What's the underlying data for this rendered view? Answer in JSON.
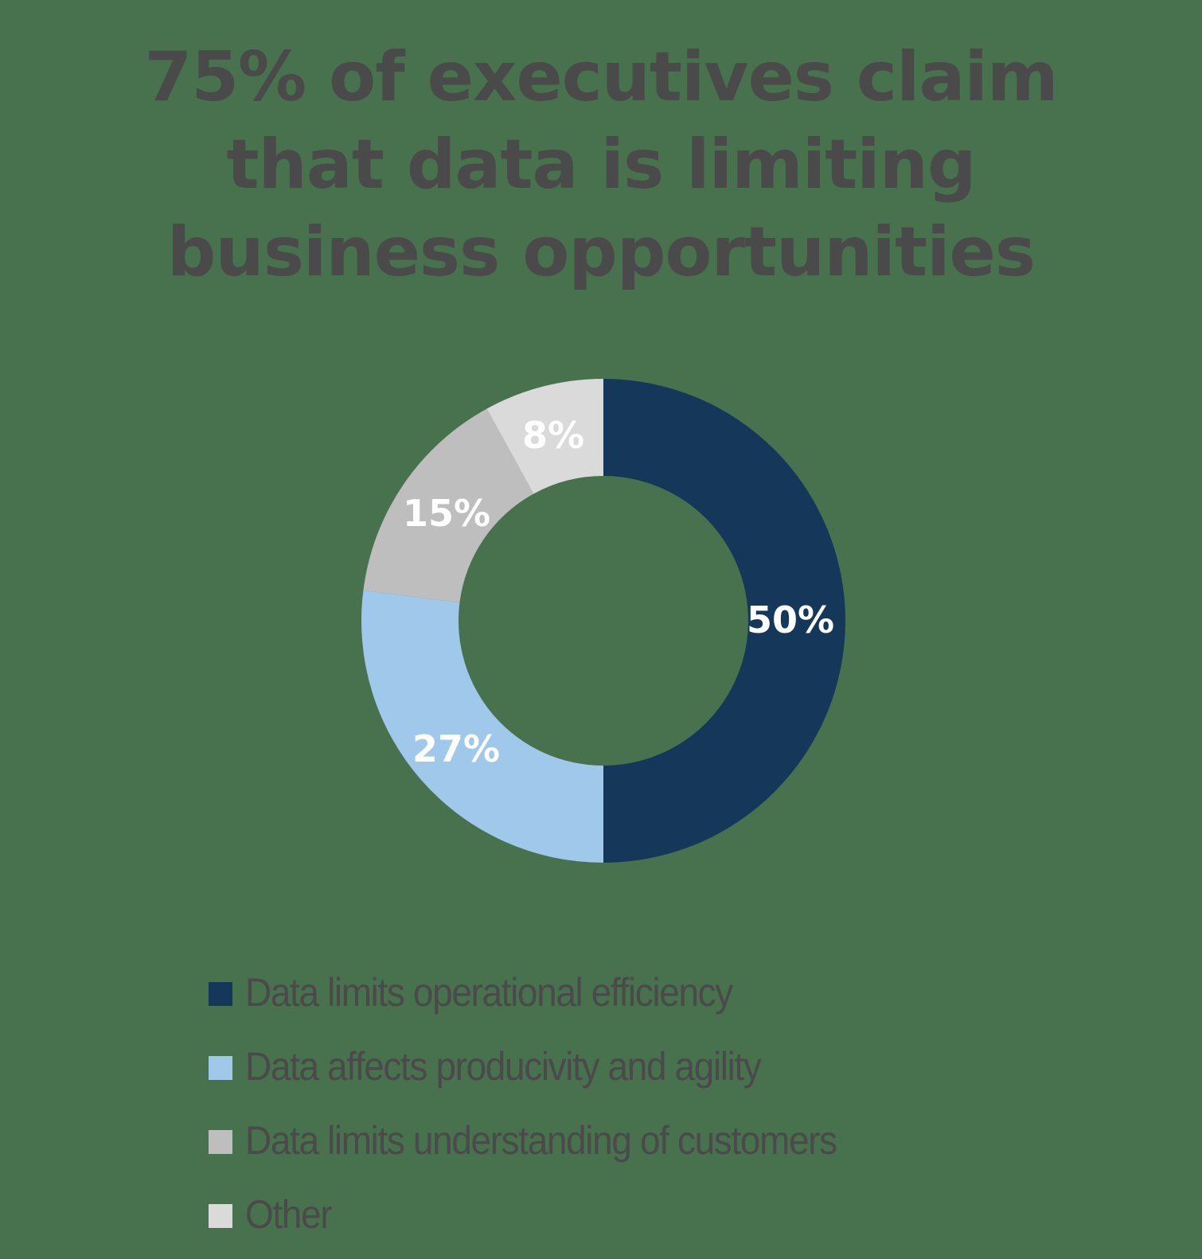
{
  "title": {
    "lines": [
      "75% of executives claim",
      "that data is limiting",
      "business opportunities"
    ]
  },
  "colors": {
    "background": "#48714e",
    "title_text": "#4a4a4b",
    "slice_label_text": "#ffffff"
  },
  "slices": [
    {
      "label": "Data limits operational efficiency",
      "value": 50,
      "value_label": "50%",
      "color": "#14375a"
    },
    {
      "label": "Data affects producivity and agility",
      "value": 27,
      "value_label": "27%",
      "color": "#9fc8ea"
    },
    {
      "label": "Data limits understanding of customers",
      "value": 15,
      "value_label": "15%",
      "color": "#bebebe"
    },
    {
      "label": "Other",
      "value": 8,
      "value_label": "8%",
      "color": "#dadada"
    }
  ],
  "chart_data": {
    "type": "pie",
    "variant": "donut",
    "title": "75% of executives claim that data is limiting business opportunities",
    "categories": [
      "Data limits operational efficiency",
      "Data affects producivity and agility",
      "Data limits understanding of customers",
      "Other"
    ],
    "values": [
      50,
      27,
      15,
      8
    ],
    "unit": "%",
    "colors": [
      "#14375a",
      "#9fc8ea",
      "#bebebe",
      "#dadada"
    ],
    "start_angle": "12 o'clock, clockwise",
    "legend_position": "bottom",
    "data_labels": [
      "50%",
      "27%",
      "15%",
      "8%"
    ]
  }
}
